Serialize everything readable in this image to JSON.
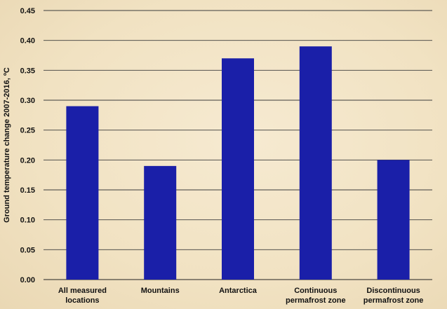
{
  "chart_data": {
    "type": "bar",
    "title": "",
    "xlabel": "",
    "ylabel": "Ground temperature change 2007-2016, ºC",
    "categories": [
      [
        "All measured",
        "locations"
      ],
      [
        "Mountains"
      ],
      [
        "Antarctica"
      ],
      [
        "Continuous",
        "permafrost zone"
      ],
      [
        "Discontinuous",
        "permafrost zone"
      ]
    ],
    "values": [
      0.29,
      0.19,
      0.37,
      0.39,
      0.2
    ],
    "ylim": [
      0,
      0.45
    ],
    "yticks": [
      "0.00",
      "0.05",
      "0.10",
      "0.15",
      "0.20",
      "0.25",
      "0.30",
      "0.35",
      "0.40",
      "0.45"
    ],
    "grid": true,
    "legend": "none",
    "colors": {
      "bar": "#1a1fa8",
      "grid": "#3c3c3c",
      "background": "#f3e5c8"
    }
  }
}
